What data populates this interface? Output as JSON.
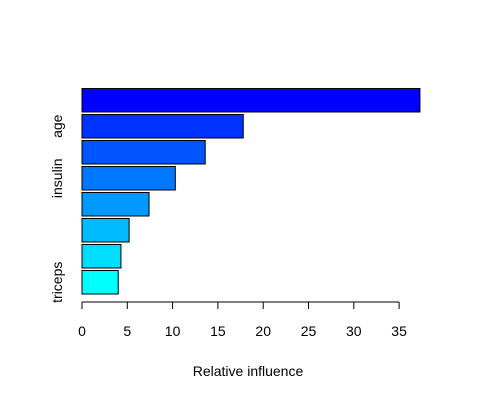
{
  "chart_data": {
    "type": "bar",
    "orientation": "horizontal",
    "title": "",
    "xlabel": "Relative influence",
    "ylabel": "",
    "xlim": [
      0,
      38
    ],
    "xticks": [
      0,
      5,
      10,
      15,
      20,
      25,
      30,
      35
    ],
    "grid": false,
    "categories": [
      "triceps",
      "",
      "",
      "",
      "insulin",
      "",
      "age",
      ""
    ],
    "values": [
      4.0,
      4.3,
      5.2,
      7.4,
      10.3,
      13.6,
      17.8,
      37.3
    ],
    "colors": [
      "#00FFFF",
      "#00DDFF",
      "#00BBFF",
      "#0099FF",
      "#0077FF",
      "#0055FF",
      "#0033FF",
      "#0000FF"
    ]
  }
}
